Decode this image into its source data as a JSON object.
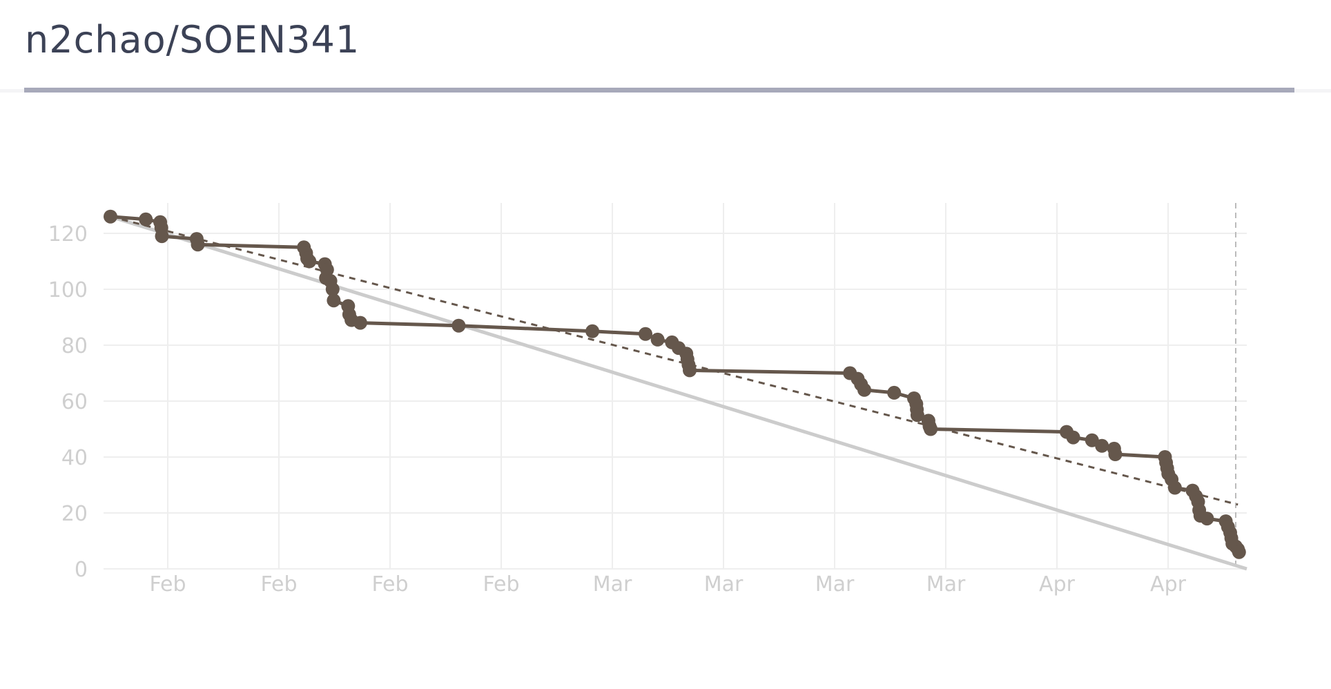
{
  "header": {
    "title": "n2chao/SOEN341"
  },
  "chart_data": {
    "type": "line",
    "title": "",
    "xlabel": "",
    "ylabel": "",
    "x_tick_labels": [
      "Feb",
      "Feb",
      "Feb",
      "Feb",
      "Mar",
      "Mar",
      "Mar",
      "Mar",
      "Apr",
      "Apr"
    ],
    "y_ticks": [
      0,
      20,
      40,
      60,
      80,
      100,
      120
    ],
    "ylim": [
      0,
      125
    ],
    "grid": true,
    "colors": {
      "actual": "#65574c",
      "ideal": "#cccccc",
      "trend": "#65574c",
      "grid": "#eeeeee",
      "ticks": "#cfcfcf"
    },
    "series": [
      {
        "style": "solid-markers",
        "points": [
          [
            0,
            126
          ],
          [
            3.2,
            125
          ],
          [
            4.5,
            124
          ],
          [
            4.6,
            122
          ],
          [
            4.65,
            119
          ],
          [
            7.8,
            118
          ],
          [
            7.9,
            116
          ],
          [
            17.5,
            115
          ],
          [
            17.7,
            113
          ],
          [
            17.8,
            111
          ],
          [
            18.0,
            110
          ],
          [
            19.4,
            109
          ],
          [
            19.6,
            107
          ],
          [
            19.5,
            104
          ],
          [
            19.9,
            103
          ],
          [
            20.1,
            100
          ],
          [
            20.2,
            96
          ],
          [
            21.5,
            94
          ],
          [
            21.6,
            91
          ],
          [
            21.8,
            89
          ],
          [
            22.6,
            88
          ],
          [
            31.5,
            87
          ],
          [
            43.6,
            85
          ],
          [
            48.4,
            84
          ],
          [
            49.5,
            82
          ],
          [
            50.8,
            81
          ],
          [
            51.4,
            79
          ],
          [
            52.1,
            77
          ],
          [
            52.2,
            75
          ],
          [
            52.3,
            73
          ],
          [
            52.4,
            71
          ],
          [
            66.9,
            70
          ],
          [
            67.6,
            68
          ],
          [
            67.9,
            66
          ],
          [
            68.2,
            64
          ],
          [
            70.9,
            63
          ],
          [
            72.7,
            61
          ],
          [
            72.9,
            59
          ],
          [
            72.95,
            57
          ],
          [
            73.0,
            55
          ],
          [
            74.0,
            53
          ],
          [
            74.1,
            51
          ],
          [
            74.2,
            50
          ],
          [
            86.5,
            49
          ],
          [
            87.1,
            47
          ],
          [
            88.8,
            46
          ],
          [
            89.7,
            44
          ],
          [
            90.8,
            43
          ],
          [
            90.9,
            41
          ],
          [
            95.4,
            40
          ],
          [
            95.5,
            38
          ],
          [
            95.6,
            36
          ],
          [
            95.7,
            34
          ],
          [
            96.0,
            32
          ],
          [
            96.3,
            29
          ],
          [
            97.9,
            28
          ],
          [
            98.2,
            26
          ],
          [
            98.4,
            24
          ],
          [
            98.5,
            21
          ],
          [
            98.6,
            19
          ],
          [
            99.2,
            18
          ],
          [
            100.9,
            17
          ],
          [
            101.1,
            15
          ],
          [
            101.3,
            13
          ],
          [
            101.4,
            11
          ],
          [
            101.5,
            9
          ],
          [
            101.8,
            8
          ],
          [
            102.0,
            7
          ],
          [
            102.1,
            6
          ]
        ]
      },
      {
        "style": "ideal",
        "points": [
          [
            0,
            126
          ],
          [
            102.8,
            0
          ]
        ]
      },
      {
        "style": "dashed-trend",
        "points": [
          [
            0,
            126
          ],
          [
            102.0,
            23
          ]
        ]
      }
    ],
    "today_marker_x": 101.8,
    "xlim": [
      0,
      102.8
    ]
  }
}
